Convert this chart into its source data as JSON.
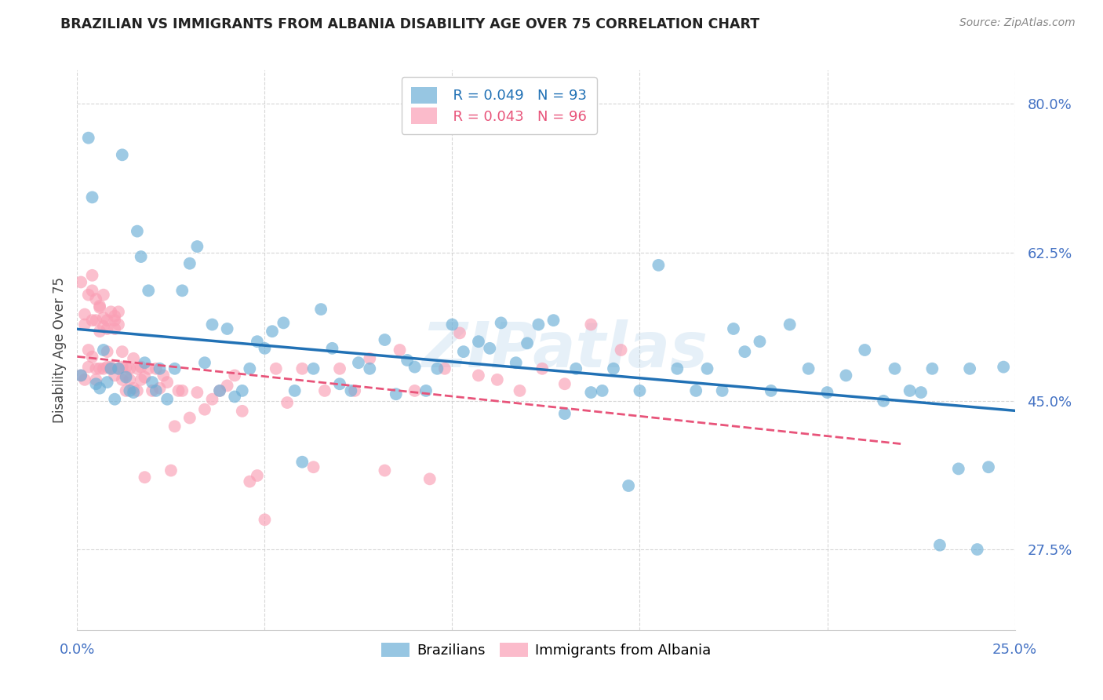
{
  "title": "BRAZILIAN VS IMMIGRANTS FROM ALBANIA DISABILITY AGE OVER 75 CORRELATION CHART",
  "source": "Source: ZipAtlas.com",
  "ylabel": "Disability Age Over 75",
  "watermark": "ZIPatlas",
  "legend_blue_r": "R = 0.049",
  "legend_blue_n": "N = 93",
  "legend_pink_r": "R = 0.043",
  "legend_pink_n": "N = 96",
  "xlim": [
    0.0,
    0.25
  ],
  "ylim": [
    0.18,
    0.84
  ],
  "yticks": [
    0.275,
    0.45,
    0.625,
    0.8
  ],
  "ytick_labels": [
    "27.5%",
    "45.0%",
    "62.5%",
    "80.0%"
  ],
  "xticks": [
    0.0,
    0.05,
    0.1,
    0.15,
    0.2,
    0.25
  ],
  "blue_color": "#6baed6",
  "pink_color": "#fa9fb5",
  "blue_line_color": "#2171b5",
  "pink_line_color": "#e8547a",
  "tick_label_color": "#4472c4",
  "background_color": "#ffffff",
  "grid_color": "#cccccc",
  "title_color": "#222222",
  "blue_x": [
    0.001,
    0.003,
    0.004,
    0.005,
    0.006,
    0.007,
    0.008,
    0.009,
    0.01,
    0.011,
    0.012,
    0.013,
    0.014,
    0.015,
    0.016,
    0.017,
    0.018,
    0.019,
    0.02,
    0.021,
    0.022,
    0.024,
    0.026,
    0.028,
    0.03,
    0.032,
    0.034,
    0.036,
    0.038,
    0.04,
    0.042,
    0.044,
    0.046,
    0.048,
    0.05,
    0.052,
    0.055,
    0.058,
    0.06,
    0.063,
    0.065,
    0.068,
    0.07,
    0.073,
    0.075,
    0.078,
    0.082,
    0.085,
    0.088,
    0.09,
    0.093,
    0.096,
    0.1,
    0.103,
    0.107,
    0.11,
    0.113,
    0.117,
    0.12,
    0.123,
    0.127,
    0.13,
    0.133,
    0.137,
    0.14,
    0.143,
    0.147,
    0.15,
    0.155,
    0.16,
    0.165,
    0.168,
    0.172,
    0.175,
    0.178,
    0.182,
    0.185,
    0.19,
    0.195,
    0.2,
    0.205,
    0.21,
    0.215,
    0.218,
    0.222,
    0.225,
    0.228,
    0.23,
    0.235,
    0.238,
    0.24,
    0.243,
    0.247
  ],
  "blue_y": [
    0.48,
    0.76,
    0.69,
    0.47,
    0.465,
    0.51,
    0.472,
    0.488,
    0.452,
    0.488,
    0.74,
    0.478,
    0.462,
    0.46,
    0.65,
    0.62,
    0.495,
    0.58,
    0.472,
    0.462,
    0.488,
    0.452,
    0.488,
    0.58,
    0.612,
    0.632,
    0.495,
    0.54,
    0.462,
    0.535,
    0.455,
    0.462,
    0.488,
    0.52,
    0.512,
    0.532,
    0.542,
    0.462,
    0.378,
    0.488,
    0.558,
    0.512,
    0.47,
    0.462,
    0.495,
    0.488,
    0.522,
    0.458,
    0.498,
    0.49,
    0.462,
    0.488,
    0.54,
    0.508,
    0.52,
    0.512,
    0.542,
    0.495,
    0.518,
    0.54,
    0.545,
    0.435,
    0.488,
    0.46,
    0.462,
    0.488,
    0.35,
    0.462,
    0.61,
    0.488,
    0.462,
    0.488,
    0.462,
    0.535,
    0.508,
    0.52,
    0.462,
    0.54,
    0.488,
    0.46,
    0.48,
    0.51,
    0.45,
    0.488,
    0.462,
    0.46,
    0.488,
    0.28,
    0.37,
    0.488,
    0.275,
    0.372,
    0.49
  ],
  "pink_x": [
    0.001,
    0.001,
    0.002,
    0.002,
    0.002,
    0.003,
    0.003,
    0.003,
    0.004,
    0.004,
    0.004,
    0.004,
    0.005,
    0.005,
    0.005,
    0.005,
    0.006,
    0.006,
    0.006,
    0.006,
    0.007,
    0.007,
    0.007,
    0.007,
    0.008,
    0.008,
    0.008,
    0.008,
    0.009,
    0.009,
    0.009,
    0.01,
    0.01,
    0.01,
    0.01,
    0.011,
    0.011,
    0.011,
    0.012,
    0.012,
    0.012,
    0.013,
    0.013,
    0.013,
    0.014,
    0.014,
    0.015,
    0.015,
    0.016,
    0.016,
    0.017,
    0.017,
    0.018,
    0.018,
    0.019,
    0.02,
    0.021,
    0.022,
    0.023,
    0.024,
    0.025,
    0.026,
    0.027,
    0.028,
    0.03,
    0.032,
    0.034,
    0.036,
    0.038,
    0.04,
    0.042,
    0.044,
    0.046,
    0.048,
    0.05,
    0.053,
    0.056,
    0.06,
    0.063,
    0.066,
    0.07,
    0.074,
    0.078,
    0.082,
    0.086,
    0.09,
    0.094,
    0.098,
    0.102,
    0.107,
    0.112,
    0.118,
    0.124,
    0.13,
    0.137,
    0.145
  ],
  "pink_y": [
    0.48,
    0.59,
    0.475,
    0.552,
    0.54,
    0.51,
    0.49,
    0.575,
    0.545,
    0.502,
    0.58,
    0.598,
    0.488,
    0.475,
    0.57,
    0.545,
    0.562,
    0.488,
    0.56,
    0.532,
    0.548,
    0.575,
    0.538,
    0.488,
    0.545,
    0.508,
    0.49,
    0.535,
    0.488,
    0.555,
    0.49,
    0.545,
    0.535,
    0.48,
    0.55,
    0.54,
    0.488,
    0.555,
    0.49,
    0.475,
    0.508,
    0.462,
    0.49,
    0.48,
    0.475,
    0.488,
    0.465,
    0.5,
    0.488,
    0.462,
    0.475,
    0.49,
    0.36,
    0.478,
    0.488,
    0.462,
    0.488,
    0.465,
    0.48,
    0.472,
    0.368,
    0.42,
    0.462,
    0.462,
    0.43,
    0.46,
    0.44,
    0.452,
    0.462,
    0.468,
    0.48,
    0.438,
    0.355,
    0.362,
    0.31,
    0.488,
    0.448,
    0.488,
    0.372,
    0.462,
    0.488,
    0.462,
    0.5,
    0.368,
    0.51,
    0.462,
    0.358,
    0.488,
    0.53,
    0.48,
    0.475,
    0.462,
    0.488,
    0.47,
    0.54,
    0.51
  ]
}
